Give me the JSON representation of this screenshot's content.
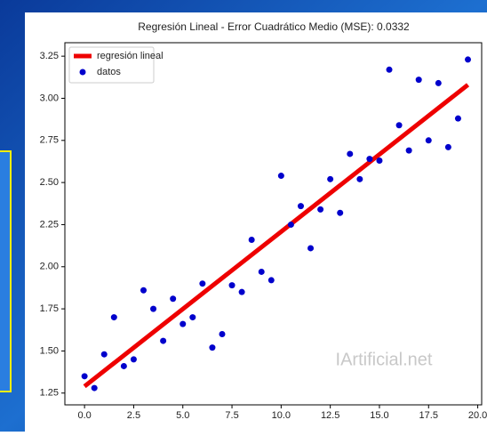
{
  "chart_data": {
    "type": "scatter",
    "title": "Regresión Lineal - Error Cuadrático Medio (MSE): 0.0332",
    "annotation": "IArtificial.net",
    "legend": "upper left",
    "grid": false,
    "xlim": [
      -1,
      20.2
    ],
    "ylim": [
      1.18,
      3.33
    ],
    "xticks": [
      {
        "value": 0,
        "label": "0.0"
      },
      2.5,
      {
        "value": 5,
        "label": "5.0"
      },
      7.5,
      {
        "value": 10,
        "label": "10.0"
      },
      12.5,
      {
        "value": 15,
        "label": "15.0"
      },
      17.5,
      {
        "value": 20,
        "label": "20.0"
      }
    ],
    "yticks": [
      1.25,
      {
        "value": 1.5,
        "label": "1.50"
      },
      1.75,
      {
        "value": 2,
        "label": "2.00"
      },
      2.25,
      {
        "value": 2.5,
        "label": "2.50"
      },
      2.75,
      {
        "value": 3,
        "label": "3.00"
      },
      3.25
    ],
    "series": [
      {
        "name": "regresión lineal",
        "type": "line",
        "color": "#ee0000",
        "x": [
          0,
          19.5
        ],
        "values": [
          1.29,
          3.08
        ]
      },
      {
        "name": "datos",
        "type": "scatter",
        "color": "#0000cc",
        "x": [
          0,
          0.5,
          1,
          1.5,
          2,
          2.5,
          3,
          3.5,
          4,
          4.5,
          5,
          5.5,
          6,
          6.5,
          7,
          7.5,
          8,
          8.5,
          9,
          9.5,
          10,
          10.5,
          11,
          11.5,
          12,
          12.5,
          13,
          13.5,
          14,
          14.5,
          15,
          15.5,
          16,
          16.5,
          17,
          17.5,
          18,
          18.5,
          19,
          19.5
        ],
        "values": [
          1.35,
          1.28,
          1.48,
          1.7,
          1.41,
          1.45,
          1.86,
          1.75,
          1.56,
          1.81,
          1.66,
          1.7,
          1.9,
          1.52,
          1.6,
          1.89,
          1.85,
          2.16,
          1.97,
          1.92,
          2.54,
          2.25,
          2.36,
          2.11,
          2.34,
          2.52,
          2.32,
          2.67,
          2.52,
          2.64,
          2.63,
          3.17,
          2.84,
          2.69,
          3.11,
          2.75,
          3.09,
          2.71,
          2.88,
          3.23
        ]
      }
    ]
  }
}
